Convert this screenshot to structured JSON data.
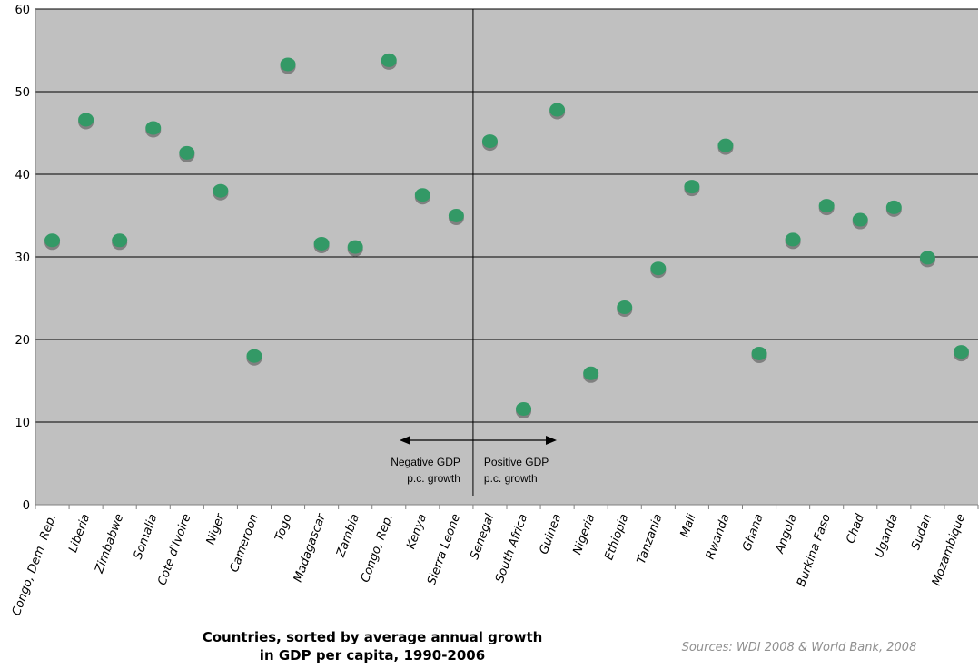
{
  "chart_data": {
    "type": "scatter",
    "categories": [
      "Congo, Dem. Rep.",
      "Liberia",
      "Zimbabwe",
      "Somalia",
      "Cote d'Ivoire",
      "Niger",
      "Cameroon",
      "Togo",
      "Madagascar",
      "Zambia",
      "Congo, Rep.",
      "Kenya",
      "Sierra Leone",
      "Senegal",
      "South Africa",
      "Guinea",
      "Nigeria",
      "Ethiopia",
      "Tanzania",
      "Mali",
      "Rwanda",
      "Ghana",
      "Angola",
      "Burkina Faso",
      "Chad",
      "Uganda",
      "Sudan",
      "Mozambique"
    ],
    "values": [
      32,
      46.6,
      32,
      45.6,
      42.6,
      38,
      18,
      53.3,
      31.6,
      31.2,
      53.8,
      37.5,
      35,
      44,
      11.6,
      47.8,
      15.9,
      23.9,
      28.6,
      38.5,
      43.5,
      18.3,
      32.1,
      36.2,
      34.5,
      36,
      29.9,
      18.5
    ],
    "ylim": [
      0,
      60
    ],
    "yticks": [
      0,
      10,
      20,
      30,
      40,
      50,
      60
    ],
    "grid": true,
    "divider_after_index": 12,
    "xlabel_line1": "Countries, sorted by average annual growth",
    "xlabel_line2": "in GDP per capita, 1990-2006",
    "annotation_negative_line1": "Negative GDP",
    "annotation_negative_line2": "p.c. growth",
    "annotation_positive_line1": "Positive GDP",
    "annotation_positive_line2": "p.c. growth",
    "source": "Sources: WDI 2008 & World Bank, 2008",
    "colors": {
      "plot_background": "#c0c0c0",
      "marker_fill": "#339966",
      "marker_shadow": "#808080",
      "gridline": "#000000"
    }
  }
}
